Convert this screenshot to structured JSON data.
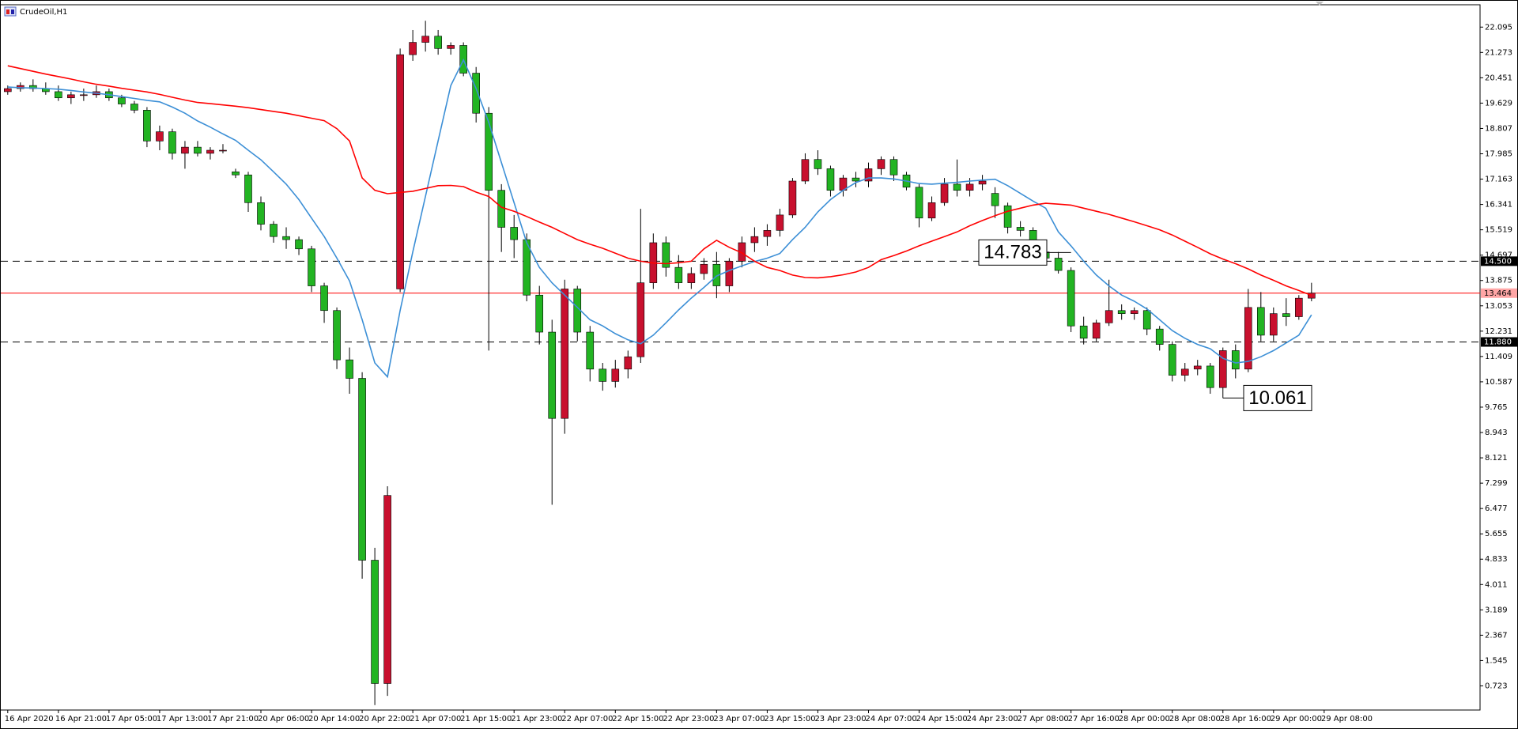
{
  "chart_data": {
    "type": "candlestick",
    "title": "CrudeOil,H1",
    "categories": [
      "16 Apr 2020",
      null,
      null,
      null,
      "16 Apr 21:00",
      null,
      null,
      null,
      "17 Apr 05:00",
      null,
      null,
      null,
      "17 Apr 13:00",
      null,
      null,
      null,
      "17 Apr 21:00",
      null,
      null,
      null,
      "20 Apr 06:00",
      null,
      null,
      null,
      "20 Apr 14:00",
      null,
      null,
      null,
      "20 Apr 22:00",
      null,
      null,
      null,
      "21 Apr 07:00",
      null,
      null,
      null,
      "21 Apr 15:00",
      null,
      null,
      null,
      "21 Apr 23:00",
      null,
      null,
      null,
      "22 Apr 07:00",
      null,
      null,
      null,
      "22 Apr 15:00",
      null,
      null,
      null,
      "22 Apr 23:00",
      null,
      null,
      null,
      "23 Apr 07:00",
      null,
      null,
      null,
      "23 Apr 15:00",
      null,
      null,
      null,
      "23 Apr 23:00",
      null,
      null,
      null,
      "24 Apr 07:00",
      null,
      null,
      null,
      "24 Apr 15:00",
      null,
      null,
      null,
      "24 Apr 23:00",
      null,
      null,
      null,
      "27 Apr 08:00",
      null,
      null,
      null,
      "27 Apr 16:00",
      null,
      null,
      null,
      "28 Apr 00:00",
      null,
      null,
      null,
      "28 Apr 08:00",
      null,
      null,
      null,
      "28 Apr 16:00",
      null,
      null,
      null,
      "29 Apr 00:00",
      null,
      null,
      null,
      "29 Apr 08:00"
    ],
    "candles": [
      [
        20.0,
        20.2,
        19.9,
        20.1
      ],
      [
        20.1,
        20.3,
        20.0,
        20.2
      ],
      [
        20.2,
        20.4,
        20.0,
        20.1
      ],
      [
        20.1,
        20.3,
        19.9,
        20.0
      ],
      [
        20.0,
        20.2,
        19.7,
        19.8
      ],
      [
        19.8,
        20.0,
        19.6,
        19.9
      ],
      [
        19.9,
        20.1,
        19.7,
        19.9
      ],
      [
        19.9,
        20.2,
        19.8,
        20.0
      ],
      [
        20.0,
        20.1,
        19.7,
        19.8
      ],
      [
        19.8,
        19.9,
        19.5,
        19.6
      ],
      [
        19.6,
        19.7,
        19.3,
        19.4
      ],
      [
        19.4,
        19.5,
        18.2,
        18.4
      ],
      [
        18.4,
        18.9,
        18.1,
        18.7
      ],
      [
        18.7,
        18.8,
        17.8,
        18.0
      ],
      [
        18.0,
        18.4,
        17.5,
        18.2
      ],
      [
        18.2,
        18.4,
        17.9,
        18.0
      ],
      [
        18.0,
        18.2,
        17.8,
        18.1
      ],
      [
        18.1,
        18.3,
        18.0,
        18.1
      ],
      [
        17.4,
        17.5,
        17.2,
        17.3
      ],
      [
        17.3,
        17.4,
        16.1,
        16.4
      ],
      [
        16.4,
        16.6,
        15.5,
        15.7
      ],
      [
        15.7,
        15.8,
        15.1,
        15.3
      ],
      [
        15.3,
        15.6,
        14.9,
        15.2
      ],
      [
        15.2,
        15.3,
        14.7,
        14.9
      ],
      [
        14.9,
        15.0,
        13.5,
        13.7
      ],
      [
        13.7,
        13.8,
        12.5,
        12.9
      ],
      [
        12.9,
        13.0,
        11.0,
        11.3
      ],
      [
        11.3,
        11.7,
        10.2,
        10.7
      ],
      [
        10.7,
        10.9,
        4.2,
        4.8
      ],
      [
        4.8,
        5.2,
        0.1,
        0.8
      ],
      [
        0.8,
        7.2,
        0.4,
        6.9
      ],
      [
        13.6,
        21.4,
        13.5,
        21.2
      ],
      [
        21.2,
        22.0,
        21.0,
        21.6
      ],
      [
        21.6,
        22.3,
        21.3,
        21.8
      ],
      [
        21.8,
        22.0,
        21.2,
        21.4
      ],
      [
        21.4,
        21.6,
        21.2,
        21.5
      ],
      [
        21.5,
        21.6,
        20.5,
        20.6
      ],
      [
        20.6,
        20.8,
        19.0,
        19.3
      ],
      [
        19.3,
        19.5,
        11.6,
        16.8
      ],
      [
        16.8,
        17.0,
        14.8,
        15.6
      ],
      [
        15.6,
        16.0,
        14.6,
        15.2
      ],
      [
        15.2,
        15.4,
        13.2,
        13.4
      ],
      [
        13.4,
        13.7,
        11.8,
        12.2
      ],
      [
        12.2,
        12.6,
        6.6,
        9.4
      ],
      [
        9.4,
        13.9,
        8.9,
        13.6
      ],
      [
        13.6,
        13.7,
        11.9,
        12.2
      ],
      [
        12.2,
        12.4,
        10.6,
        11.0
      ],
      [
        11.0,
        11.2,
        10.3,
        10.6
      ],
      [
        10.6,
        11.3,
        10.4,
        11.0
      ],
      [
        11.0,
        11.6,
        10.7,
        11.4
      ],
      [
        11.4,
        16.2,
        11.2,
        13.8
      ],
      [
        13.8,
        15.4,
        13.6,
        15.1
      ],
      [
        15.1,
        15.3,
        14.0,
        14.3
      ],
      [
        14.3,
        14.7,
        13.6,
        13.8
      ],
      [
        13.8,
        14.3,
        13.6,
        14.1
      ],
      [
        14.1,
        14.6,
        13.9,
        14.4
      ],
      [
        14.4,
        14.8,
        13.3,
        13.7
      ],
      [
        13.7,
        14.6,
        13.5,
        14.5
      ],
      [
        14.5,
        15.3,
        14.3,
        15.1
      ],
      [
        15.1,
        15.6,
        14.8,
        15.3
      ],
      [
        15.3,
        15.7,
        15.0,
        15.5
      ],
      [
        15.5,
        16.2,
        15.3,
        16.0
      ],
      [
        16.0,
        17.2,
        15.9,
        17.1
      ],
      [
        17.1,
        18.0,
        17.0,
        17.8
      ],
      [
        17.8,
        18.1,
        17.3,
        17.5
      ],
      [
        17.5,
        17.6,
        16.6,
        16.8
      ],
      [
        16.8,
        17.3,
        16.6,
        17.2
      ],
      [
        17.2,
        17.4,
        16.9,
        17.1
      ],
      [
        17.1,
        17.7,
        16.9,
        17.5
      ],
      [
        17.5,
        17.9,
        17.3,
        17.8
      ],
      [
        17.8,
        17.9,
        17.1,
        17.3
      ],
      [
        17.3,
        17.4,
        16.8,
        16.9
      ],
      [
        16.9,
        17.0,
        15.6,
        15.9
      ],
      [
        15.9,
        16.6,
        15.8,
        16.4
      ],
      [
        16.4,
        17.2,
        16.3,
        17.0
      ],
      [
        17.0,
        17.8,
        16.6,
        16.8
      ],
      [
        16.8,
        17.2,
        16.6,
        17.0
      ],
      [
        17.0,
        17.3,
        16.8,
        17.1
      ],
      [
        16.7,
        16.9,
        15.9,
        16.3
      ],
      [
        16.3,
        16.4,
        15.4,
        15.6
      ],
      [
        15.6,
        15.8,
        15.3,
        15.5
      ],
      [
        15.5,
        15.6,
        14.6,
        14.8
      ],
      [
        14.8,
        15.0,
        14.4,
        14.6
      ],
      [
        14.6,
        14.8,
        14.1,
        14.2
      ],
      [
        14.2,
        14.3,
        12.2,
        12.4
      ],
      [
        12.4,
        12.7,
        11.8,
        12.0
      ],
      [
        12.0,
        12.6,
        11.9,
        12.5
      ],
      [
        12.5,
        13.9,
        12.4,
        12.9
      ],
      [
        12.9,
        13.1,
        12.6,
        12.8
      ],
      [
        12.8,
        13.0,
        12.6,
        12.9
      ],
      [
        12.9,
        13.0,
        12.1,
        12.3
      ],
      [
        12.3,
        12.4,
        11.6,
        11.8
      ],
      [
        11.8,
        11.9,
        10.6,
        10.8
      ],
      [
        10.8,
        11.2,
        10.6,
        11.0
      ],
      [
        11.0,
        11.3,
        10.8,
        11.1
      ],
      [
        11.1,
        11.2,
        10.2,
        10.4
      ],
      [
        10.4,
        11.7,
        10.061,
        11.6
      ],
      [
        11.6,
        11.8,
        10.7,
        11.0
      ],
      [
        11.0,
        13.6,
        10.9,
        13.0
      ],
      [
        13.0,
        13.5,
        11.9,
        12.1
      ],
      [
        12.1,
        13.0,
        11.9,
        12.8
      ],
      [
        12.8,
        13.3,
        12.4,
        12.7
      ],
      [
        12.7,
        13.4,
        12.6,
        13.3
      ],
      [
        13.3,
        13.8,
        13.2,
        13.464
      ],
      null
    ],
    "up_color": "#c8102e",
    "down_color": "#22b422",
    "ylim": [
      -0.06,
      22.82
    ],
    "yticks": [
      22.095,
      21.273,
      20.451,
      19.629,
      18.807,
      17.985,
      17.163,
      16.341,
      15.519,
      14.697,
      13.875,
      13.053,
      12.231,
      11.409,
      10.587,
      9.765,
      8.943,
      8.121,
      7.299,
      6.477,
      5.655,
      4.833,
      4.011,
      3.189,
      2.367,
      1.545,
      0.723
    ],
    "indicators": [
      {
        "color": "#3c8fd6",
        "values": [
          20.15,
          20.13,
          20.12,
          20.1,
          20.08,
          20.04,
          19.99,
          19.95,
          19.9,
          19.84,
          19.78,
          19.72,
          19.67,
          19.5,
          19.3,
          19.05,
          18.85,
          18.63,
          18.42,
          18.1,
          17.79,
          17.4,
          17.0,
          16.5,
          15.9,
          15.3,
          14.6,
          13.86,
          12.6,
          11.2,
          10.75,
          12.9,
          14.8,
          16.6,
          18.4,
          20.2,
          21.03,
          20.1,
          19.0,
          17.7,
          16.4,
          15.1,
          14.3,
          13.8,
          13.4,
          13.0,
          12.6,
          12.4,
          12.15,
          11.95,
          11.82,
          12.1,
          12.5,
          12.92,
          13.3,
          13.65,
          14.02,
          14.2,
          14.35,
          14.49,
          14.6,
          14.75,
          15.2,
          15.6,
          16.1,
          16.5,
          16.8,
          17.05,
          17.2,
          17.2,
          17.17,
          17.1,
          17.02,
          17.0,
          17.03,
          17.06,
          17.1,
          17.13,
          17.16,
          16.95,
          16.7,
          16.45,
          16.22,
          15.45,
          15.0,
          14.5,
          14.05,
          13.7,
          13.4,
          13.2,
          12.95,
          12.6,
          12.25,
          12.0,
          11.8,
          11.66,
          11.35,
          11.2,
          11.25,
          11.4,
          11.6,
          11.85,
          12.1,
          12.76
        ]
      },
      {
        "color": "#ff0000",
        "values": [
          20.84,
          20.75,
          20.66,
          20.57,
          20.49,
          20.41,
          20.32,
          20.24,
          20.18,
          20.11,
          20.05,
          19.99,
          19.91,
          19.82,
          19.73,
          19.65,
          19.61,
          19.57,
          19.53,
          19.48,
          19.42,
          19.36,
          19.3,
          19.22,
          19.14,
          19.06,
          18.8,
          18.4,
          17.2,
          16.8,
          16.69,
          16.73,
          16.77,
          16.86,
          16.95,
          16.96,
          16.92,
          16.74,
          16.6,
          16.25,
          16.12,
          15.95,
          15.77,
          15.6,
          15.4,
          15.2,
          15.05,
          14.92,
          14.76,
          14.6,
          14.5,
          14.44,
          14.42,
          14.45,
          14.5,
          14.9,
          15.18,
          14.95,
          14.77,
          14.5,
          14.3,
          14.2,
          14.05,
          13.97,
          13.96,
          14.0,
          14.06,
          14.15,
          14.3,
          14.55,
          14.68,
          14.83,
          15.0,
          15.15,
          15.3,
          15.45,
          15.65,
          15.82,
          15.98,
          16.12,
          16.22,
          16.32,
          16.38,
          16.35,
          16.32,
          16.22,
          16.12,
          16.02,
          15.9,
          15.78,
          15.65,
          15.52,
          15.35,
          15.15,
          14.95,
          14.74,
          14.57,
          14.42,
          14.25,
          14.05,
          13.88,
          13.7,
          13.55,
          13.39
        ]
      }
    ],
    "levels": [
      {
        "value": 14.5,
        "label": "14.500"
      },
      {
        "value": 11.88,
        "label": "11.880"
      }
    ],
    "price_line": {
      "value": 13.464,
      "color": "#ff0000"
    },
    "annotations": [
      14.783,
      10.061
    ]
  }
}
